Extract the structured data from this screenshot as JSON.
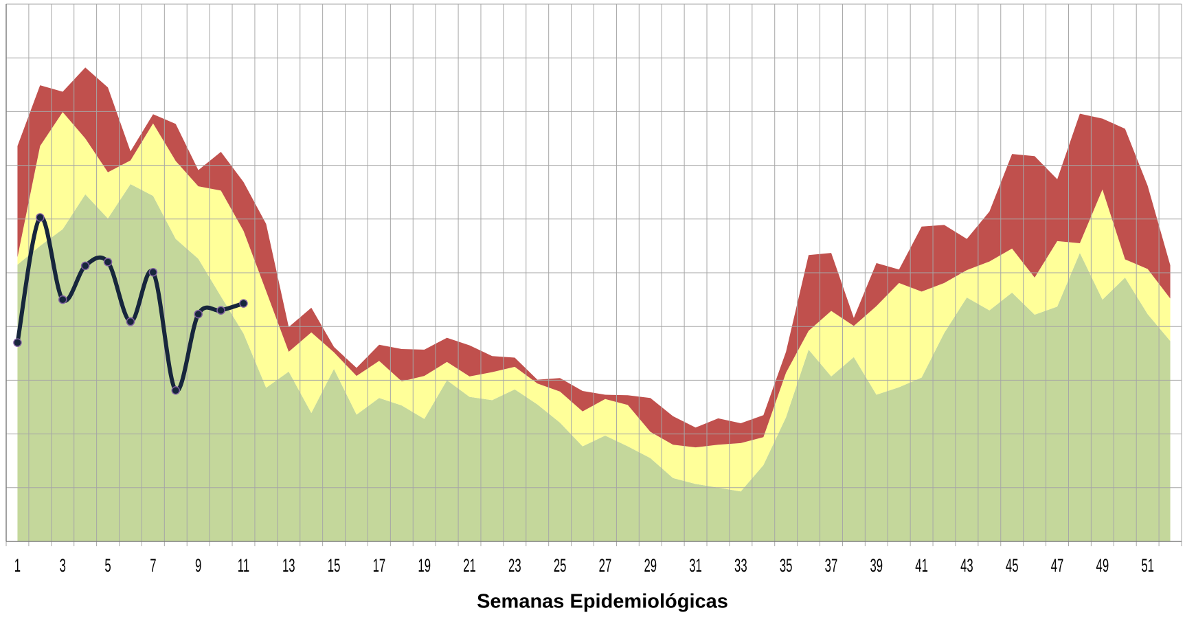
{
  "chart_data": {
    "type": "stacked_area_line",
    "x_label": "Semanas Epidemiológicas",
    "categories": [
      "1",
      null,
      "3",
      null,
      "5",
      null,
      "7",
      null,
      "9",
      null,
      "11",
      null,
      "13",
      null,
      "15",
      null,
      "17",
      null,
      "19",
      null,
      "21",
      null,
      "23",
      null,
      "25",
      null,
      "27",
      null,
      "29",
      null,
      "31",
      null,
      "33",
      null,
      "35",
      null,
      "37",
      null,
      "39",
      null,
      "41",
      null,
      "43",
      null,
      "45",
      null,
      "47",
      null,
      "49",
      null,
      "51",
      null
    ],
    "ylim": [
      0,
      10
    ],
    "yticks": [
      0,
      1,
      2,
      3,
      4,
      5,
      6,
      7,
      8,
      9,
      10
    ],
    "grid": true,
    "series": [
      {
        "color": "#c4d79b",
        "values": [
          5.15,
          5.5,
          5.81,
          6.46,
          6.01,
          6.65,
          6.43,
          5.63,
          5.26,
          4.56,
          3.87,
          2.86,
          3.16,
          2.39,
          3.21,
          2.36,
          2.67,
          2.53,
          2.28,
          3.0,
          2.69,
          2.63,
          2.83,
          2.55,
          2.21,
          1.77,
          1.97,
          1.77,
          1.55,
          1.18,
          1.07,
          1.0,
          0.93,
          1.42,
          2.31,
          3.57,
          3.07,
          3.43,
          2.73,
          2.87,
          3.05,
          3.88,
          4.54,
          4.3,
          4.63,
          4.22,
          4.37,
          5.37,
          4.5,
          4.91,
          4.23,
          3.73
        ]
      },
      {
        "color": "#ffff99",
        "values": [
          0.14,
          1.86,
          2.18,
          1.04,
          0.86,
          0.44,
          1.35,
          1.45,
          1.35,
          1.97,
          1.91,
          1.8,
          0.37,
          1.5,
          0.31,
          0.72,
          0.69,
          0.45,
          0.8,
          0.34,
          0.38,
          0.52,
          0.42,
          0.39,
          0.58,
          0.65,
          0.68,
          0.77,
          0.49,
          0.62,
          0.68,
          0.8,
          0.9,
          0.52,
          0.83,
          0.35,
          1.22,
          0.58,
          1.65,
          1.94,
          1.6,
          0.93,
          0.51,
          0.91,
          0.82,
          0.69,
          1.22,
          0.18,
          2.05,
          0.34,
          0.84,
          0.79
        ]
      },
      {
        "color": "#c0504d",
        "values": [
          2.07,
          1.13,
          0.38,
          1.32,
          1.58,
          0.17,
          0.17,
          0.69,
          0.3,
          0.72,
          0.91,
          1.25,
          0.46,
          0.46,
          0.1,
          0.15,
          0.3,
          0.6,
          0.49,
          0.45,
          0.58,
          0.3,
          0.17,
          0.07,
          0.25,
          0.38,
          0.08,
          0.18,
          0.63,
          0.53,
          0.37,
          0.49,
          0.37,
          0.41,
          0.39,
          1.41,
          1.08,
          0.15,
          0.8,
          0.25,
          1.21,
          1.08,
          0.58,
          0.93,
          1.76,
          2.26,
          1.15,
          2.41,
          1.32,
          2.43,
          1.55,
          0.62
        ]
      }
    ],
    "line": {
      "color": "#17263c",
      "marker_edge": "#7f5fa0",
      "values": [
        3.7,
        6.03,
        4.5,
        5.13,
        5.2,
        4.09,
        5.01,
        2.81,
        4.23,
        4.3,
        4.43,
        null,
        null,
        null,
        null,
        null,
        null,
        null,
        null,
        null,
        null,
        null,
        null,
        null,
        null,
        null,
        null,
        null,
        null,
        null,
        null,
        null,
        null,
        null,
        null,
        null,
        null,
        null,
        null,
        null,
        null,
        null,
        null,
        null,
        null,
        null,
        null,
        null,
        null,
        null,
        null,
        null
      ]
    }
  }
}
